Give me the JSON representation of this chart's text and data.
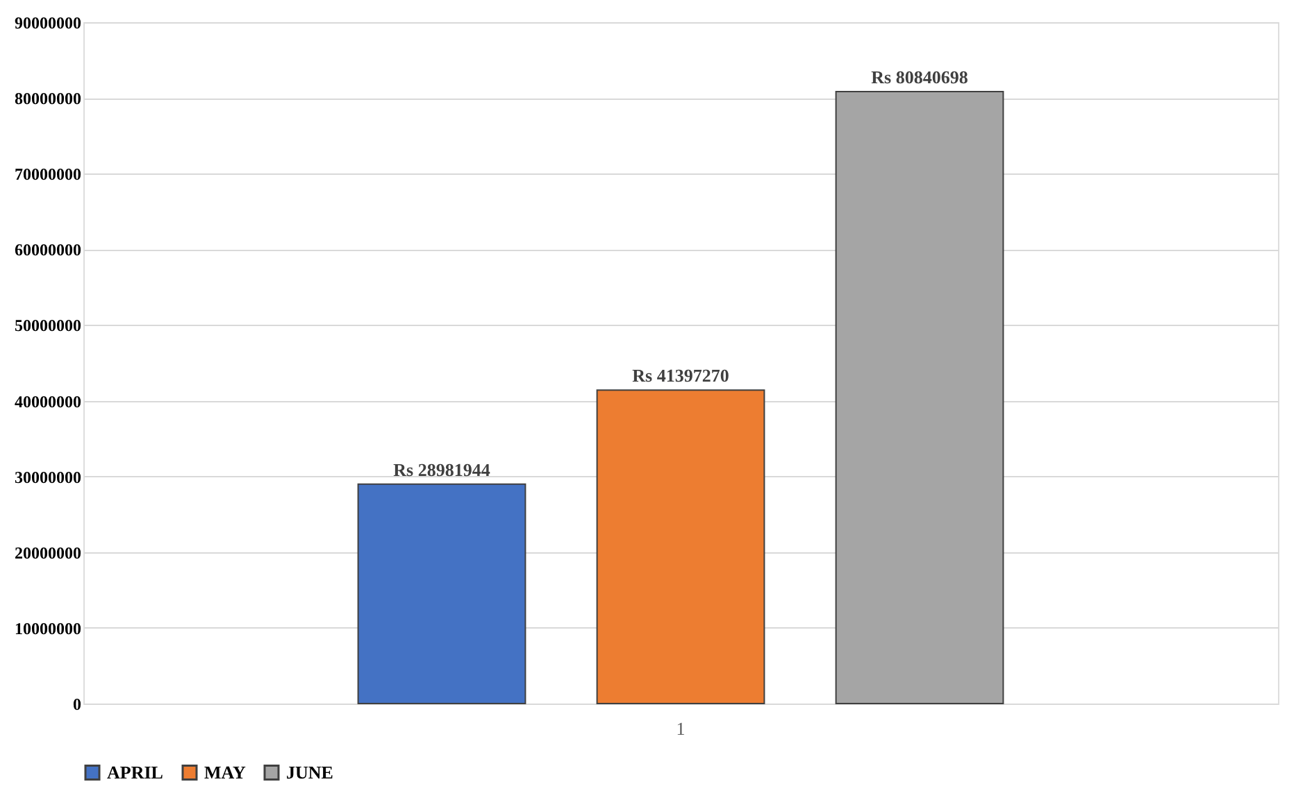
{
  "chart_data": {
    "type": "bar",
    "categories": [
      "1"
    ],
    "series": [
      {
        "name": "APRIL",
        "color": "#4472c4",
        "values": [
          28981944
        ],
        "value_labels": [
          "Rs 28981944"
        ]
      },
      {
        "name": "MAY",
        "color": "#ed7d31",
        "values": [
          41397270
        ],
        "value_labels": [
          "Rs 41397270"
        ]
      },
      {
        "name": "JUNE",
        "color": "#a5a5a5",
        "values": [
          80840698
        ],
        "value_labels": [
          "Rs 80840698"
        ]
      }
    ],
    "ylim": [
      0,
      90000000
    ],
    "yticks": [
      0,
      10000000,
      20000000,
      30000000,
      40000000,
      50000000,
      60000000,
      70000000,
      80000000,
      90000000
    ],
    "grid": "y",
    "legend": "bottom"
  }
}
